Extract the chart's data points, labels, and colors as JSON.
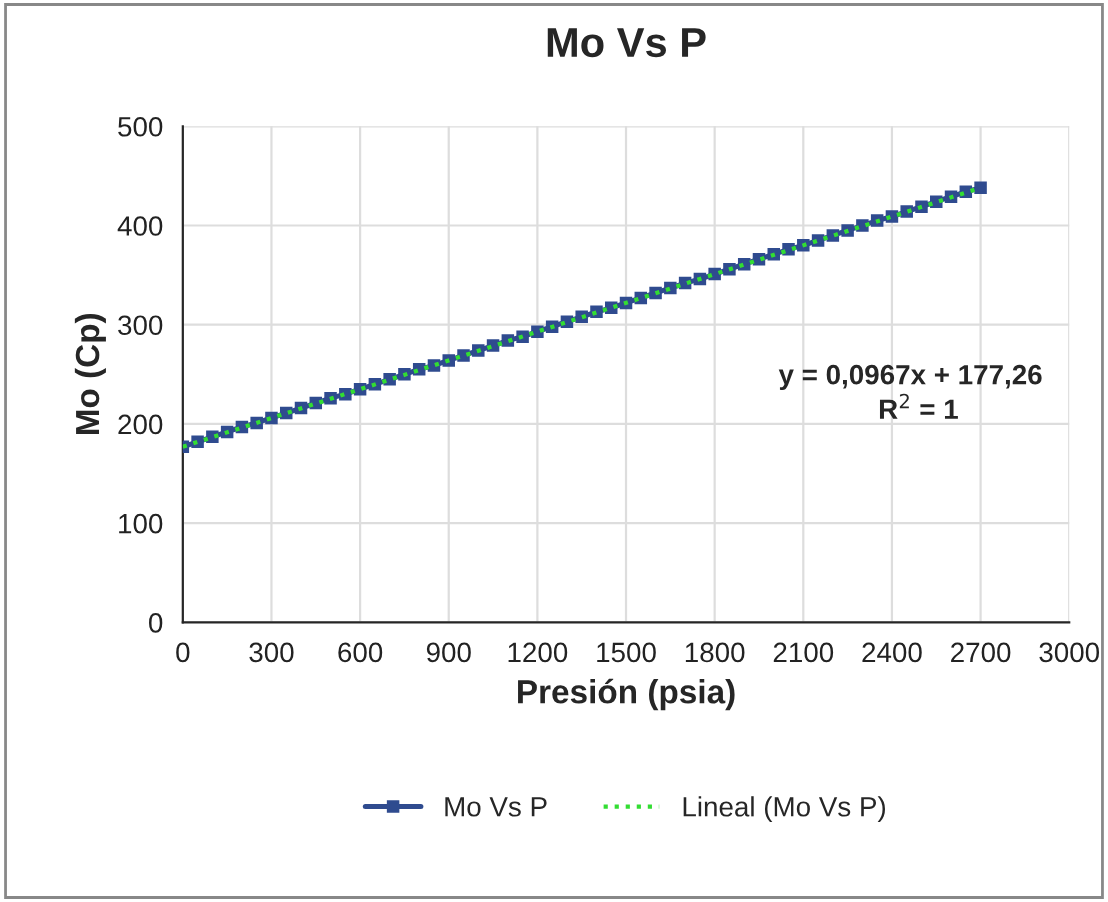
{
  "chart_data": {
    "type": "line",
    "title": "Mo Vs P",
    "xlabel": "Presión (psia)",
    "ylabel": "Mo (Cp)",
    "xlim": [
      0,
      3000
    ],
    "xticks": [
      0,
      300,
      600,
      900,
      1200,
      1500,
      1800,
      2100,
      2400,
      2700,
      3000
    ],
    "ylim": [
      0,
      500
    ],
    "yticks": [
      0,
      100,
      200,
      300,
      400,
      500
    ],
    "grid": true,
    "legend": "bottom",
    "series": [
      {
        "name": "Mo Vs P",
        "color": "#2f4b8f",
        "marker": "square",
        "line_style": "solid",
        "x": [
          0,
          50,
          100,
          150,
          200,
          250,
          300,
          350,
          400,
          450,
          500,
          550,
          600,
          650,
          700,
          750,
          800,
          850,
          900,
          950,
          1000,
          1050,
          1100,
          1150,
          1200,
          1250,
          1300,
          1350,
          1400,
          1450,
          1500,
          1550,
          1600,
          1650,
          1700,
          1750,
          1800,
          1850,
          1900,
          1950,
          2000,
          2050,
          2100,
          2150,
          2200,
          2250,
          2300,
          2350,
          2400,
          2450,
          2500,
          2550,
          2600,
          2650,
          2700
        ],
        "values": [
          177,
          182,
          187,
          192,
          197,
          201,
          206,
          211,
          216,
          221,
          226,
          230,
          235,
          240,
          245,
          250,
          255,
          259,
          264,
          269,
          274,
          279,
          284,
          288,
          293,
          298,
          303,
          308,
          313,
          317,
          322,
          327,
          332,
          337,
          342,
          346,
          351,
          356,
          361,
          366,
          371,
          376,
          380,
          385,
          390,
          395,
          400,
          405,
          409,
          414,
          419,
          424,
          429,
          434,
          438
        ]
      },
      {
        "name": "Lineal (Mo Vs P)",
        "color": "#33dd33",
        "marker": "none",
        "line_style": "dotted",
        "x": [
          0,
          2700
        ],
        "values": [
          177,
          438
        ]
      }
    ],
    "annotations": [
      "y = 0,0967x + 177,26",
      "R$^{2}$ = 1"
    ]
  }
}
